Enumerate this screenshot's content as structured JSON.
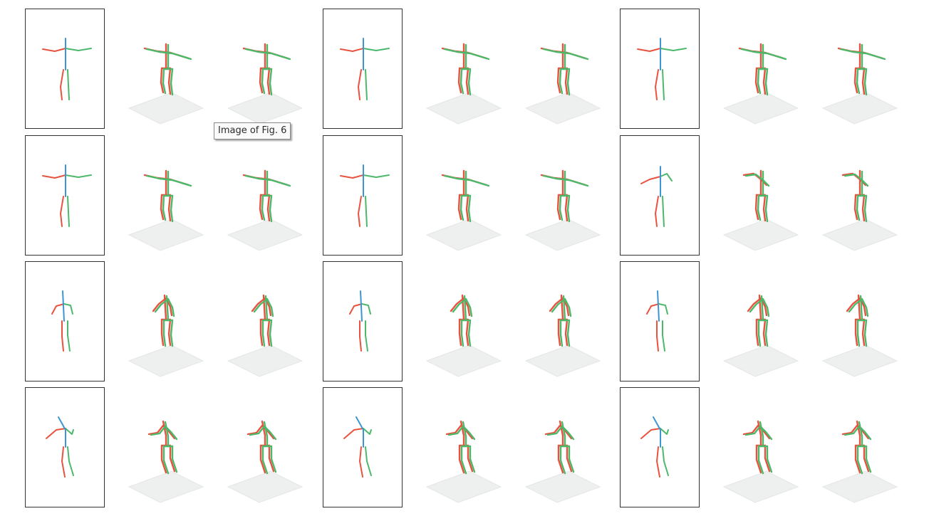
{
  "tooltip": {
    "text": "Image of Fig. 6"
  },
  "colors": {
    "left_limb": "#e8523e",
    "right_limb": "#4cb86a",
    "torso_2d": "#3d95d2",
    "ground_plane": "#eef0ef",
    "frame_border": "#333333"
  },
  "layout_grid": {
    "rows": 4,
    "groups_per_row": 3,
    "views_per_group": [
      "2d-input",
      "3d-view-a",
      "3d-view-b"
    ]
  },
  "poses": [
    "t-pose-arms-out",
    "t-pose-arms-out-variant",
    "arm-bent-pose",
    "crossed-arms-stance",
    "raised-arm-twist"
  ]
}
